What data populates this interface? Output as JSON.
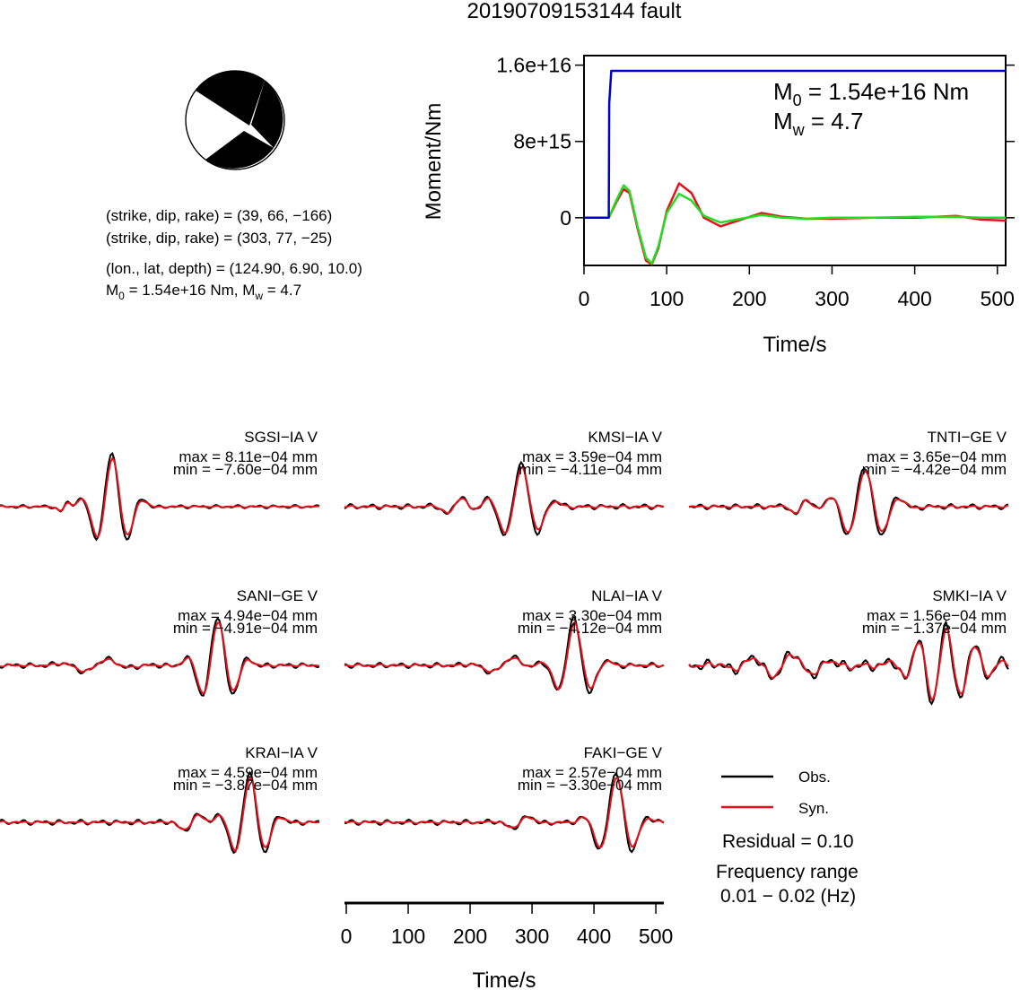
{
  "title": "20190709153144 fault",
  "mechanism": {
    "line1": "(strike, dip, rake) = (39, 66, −166)",
    "line2": "(strike, dip, rake) = (303, 77, −25)",
    "line3": "(lon., lat, depth) = (124.90, 6.90, 10.0)",
    "m0_prefix": "M",
    "m0_sub": "0",
    "m0_rest": " = 1.54e+16 Nm, M",
    "mw_sub": "w",
    "mw_rest": " = 4.7"
  },
  "moment_panel": {
    "ylabel": "Moment/Nm",
    "xlabel": "Time/s",
    "yticks": [
      "0",
      "8e+15",
      "1.6e+16"
    ],
    "xticks": [
      "0",
      "100",
      "200",
      "300",
      "400",
      "500"
    ],
    "m0_label_prefix": "M",
    "m0_label_sub": "0",
    "m0_label_rest": " = 1.54e+16 Nm",
    "mw_label_prefix": "M",
    "mw_label_sub": "w",
    "mw_label_rest": " = 4.7"
  },
  "wave_axis": {
    "xlabel": "Time/s",
    "xticks": [
      "0",
      "100",
      "200",
      "300",
      "400",
      "500"
    ]
  },
  "legend": {
    "obs": "Obs.",
    "syn": "Syn.",
    "residual": "Residual = 0.10",
    "freq_title": "Frequency range",
    "freq_value": "0.01 − 0.02 (Hz)"
  },
  "colors": {
    "observed": "#000000",
    "synthetic": "#e8101a",
    "moment": "#0000cc",
    "moment_green": "#22dd22",
    "moment_red": "#e8101a"
  },
  "stations": [
    {
      "name": "SGSI−IA V",
      "max": "max = 8.11e−04 mm",
      "min": "min = −7.60e−04 mm"
    },
    {
      "name": "KMSI−IA V",
      "max": "max = 3.59e−04 mm",
      "min": "min = −4.11e−04 mm"
    },
    {
      "name": "TNTI−GE V",
      "max": "max = 3.65e−04 mm",
      "min": "min = −4.42e−04 mm"
    },
    {
      "name": "SANI−GE V",
      "max": "max = 4.94e−04 mm",
      "min": "min = −4.91e−04 mm"
    },
    {
      "name": "NLAI−IA V",
      "max": "max = 3.30e−04 mm",
      "min": "min = −4.12e−04 mm"
    },
    {
      "name": "SMKI−IA V",
      "max": "max = 1.56e−04 mm",
      "min": "min = −1.37e−04 mm"
    },
    {
      "name": "KRAI−IA V",
      "max": "max = 4.59e−04 mm",
      "min": "min = −3.87e−04 mm"
    },
    {
      "name": "FAKI−GE V",
      "max": "max = 2.57e−04 mm",
      "min": "min = −3.30e−04 mm"
    }
  ],
  "chart_data": [
    {
      "type": "line",
      "title": "",
      "xlabel": "Time/s",
      "ylabel": "Moment/Nm",
      "xlim": [
        0,
        510
      ],
      "ylim": [
        -5000000000000000,
        17000000000000000
      ],
      "series": [
        {
          "name": "",
          "color": "#0000cc",
          "x": [
            0,
            30,
            30.5,
            33,
            510
          ],
          "y": [
            0,
            0,
            12000000000000000,
            15400000000000000,
            15400000000000000
          ]
        },
        {
          "name": "",
          "color": "#22dd22",
          "x": [
            0,
            30,
            40,
            48,
            55,
            65,
            75,
            82,
            90,
            100,
            115,
            130,
            145,
            165,
            190,
            215,
            240,
            270,
            300,
            350,
            400,
            450,
            480,
            510
          ],
          "y": [
            0,
            0,
            2000000000000000,
            3400000000000000,
            2800000000000000,
            -1000000000000000,
            -4200000000000000,
            -4800000000000000,
            -3000000000000000,
            500000000000000,
            2500000000000000,
            1800000000000000,
            200000000000000,
            -500000000000000,
            -100000000000000,
            300000000000000,
            0,
            -100000000000000,
            0,
            0,
            100000000000000,
            100000000000000,
            0,
            0
          ]
        },
        {
          "name": "",
          "color": "#e8101a",
          "x": [
            0,
            30,
            40,
            48,
            55,
            65,
            75,
            82,
            90,
            100,
            115,
            130,
            145,
            165,
            190,
            215,
            240,
            270,
            300,
            350,
            400,
            450,
            480,
            510
          ],
          "y": [
            0,
            0,
            1800000000000000,
            3000000000000000,
            2600000000000000,
            -1200000000000000,
            -4500000000000000,
            -4900000000000000,
            -3200000000000000,
            700000000000000,
            3600000000000000,
            2600000000000000,
            0,
            -900000000000000,
            -200000000000000,
            500000000000000,
            100000000000000,
            -100000000000000,
            -100000000000000,
            0,
            0,
            200000000000000,
            -200000000000000,
            -300000000000000
          ]
        }
      ]
    }
  ]
}
